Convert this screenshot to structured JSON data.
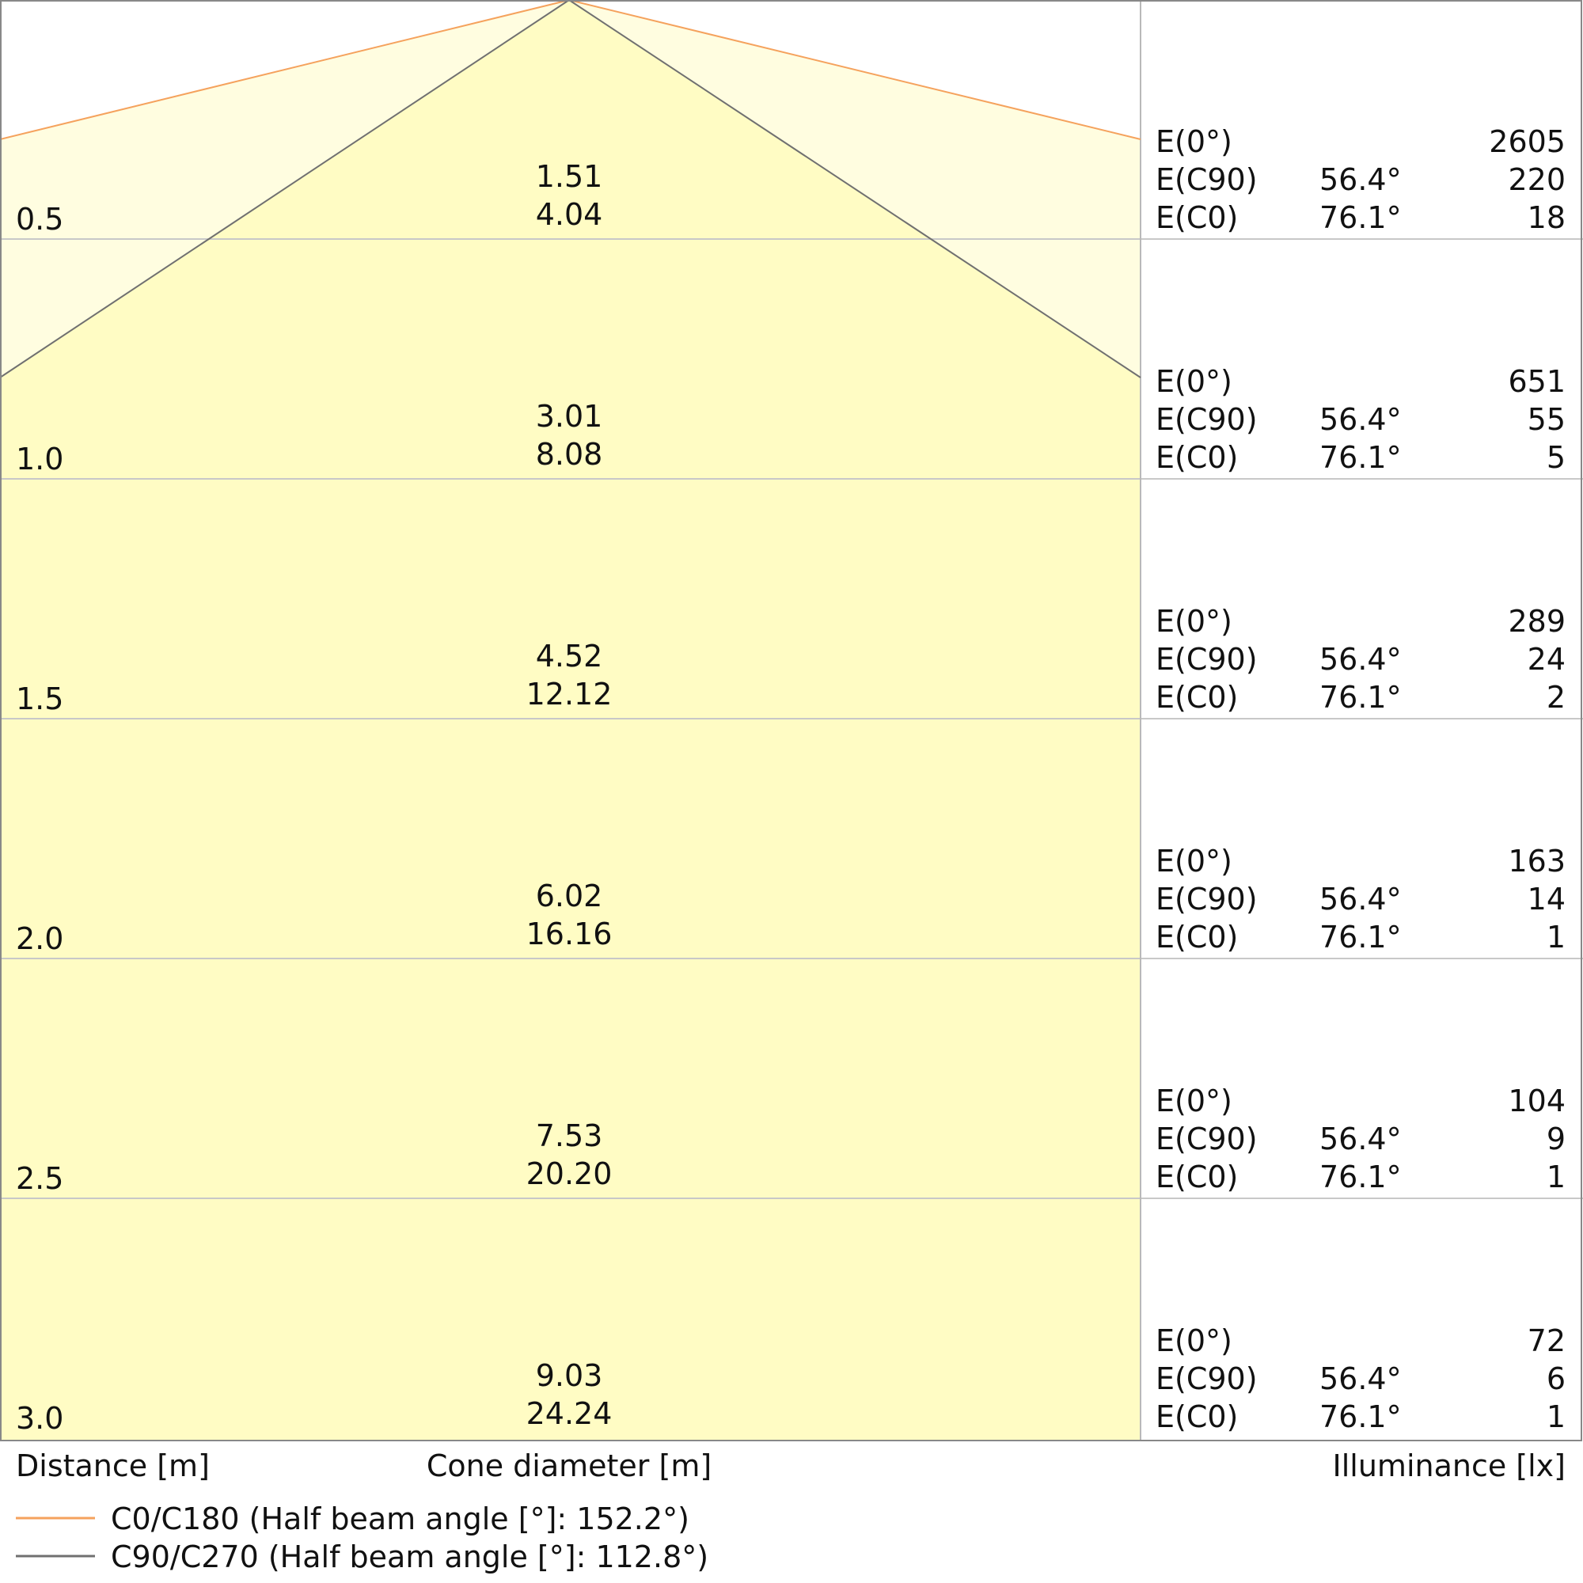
{
  "chart_data": {
    "type": "table",
    "xlabel": "Cone diameter [m]",
    "ylabel": "Distance [m]",
    "right_label": "Illuminance [lx]",
    "series": [
      {
        "name": "C0/C180 (Half beam angle [°]: 152.2°)",
        "color": "#f5a25d",
        "half_beam_angle": 152.2
      },
      {
        "name": "C90/C270 (Half beam angle [°]: 112.8°)",
        "color": "#707070",
        "half_beam_angle": 112.8
      }
    ],
    "fill_colors": {
      "outer": "#fffde0",
      "inner": "#fffcc4"
    },
    "rows": [
      {
        "distance": "0.5",
        "cone_c90": "1.51",
        "cone_c0": "4.04",
        "e0": "2605",
        "ec90": "220",
        "ec0": "18"
      },
      {
        "distance": "1.0",
        "cone_c90": "3.01",
        "cone_c0": "8.08",
        "e0": "651",
        "ec90": "55",
        "ec0": "5"
      },
      {
        "distance": "1.5",
        "cone_c90": "4.52",
        "cone_c0": "12.12",
        "e0": "289",
        "ec90": "24",
        "ec0": "2"
      },
      {
        "distance": "2.0",
        "cone_c90": "6.02",
        "cone_c0": "16.16",
        "e0": "163",
        "ec90": "14",
        "ec0": "1"
      },
      {
        "distance": "2.5",
        "cone_c90": "7.53",
        "cone_c0": "20.20",
        "e0": "104",
        "ec90": "9",
        "ec0": "1"
      },
      {
        "distance": "3.0",
        "cone_c90": "9.03",
        "cone_c0": "24.24",
        "e0": "72",
        "ec90": "6",
        "ec0": "1"
      }
    ],
    "row_labels": {
      "e0": "E(0°)",
      "ec90": "E(C90)",
      "ec0": "E(C0)"
    },
    "angles": {
      "c90": "56.4°",
      "c0": "76.1°"
    }
  }
}
